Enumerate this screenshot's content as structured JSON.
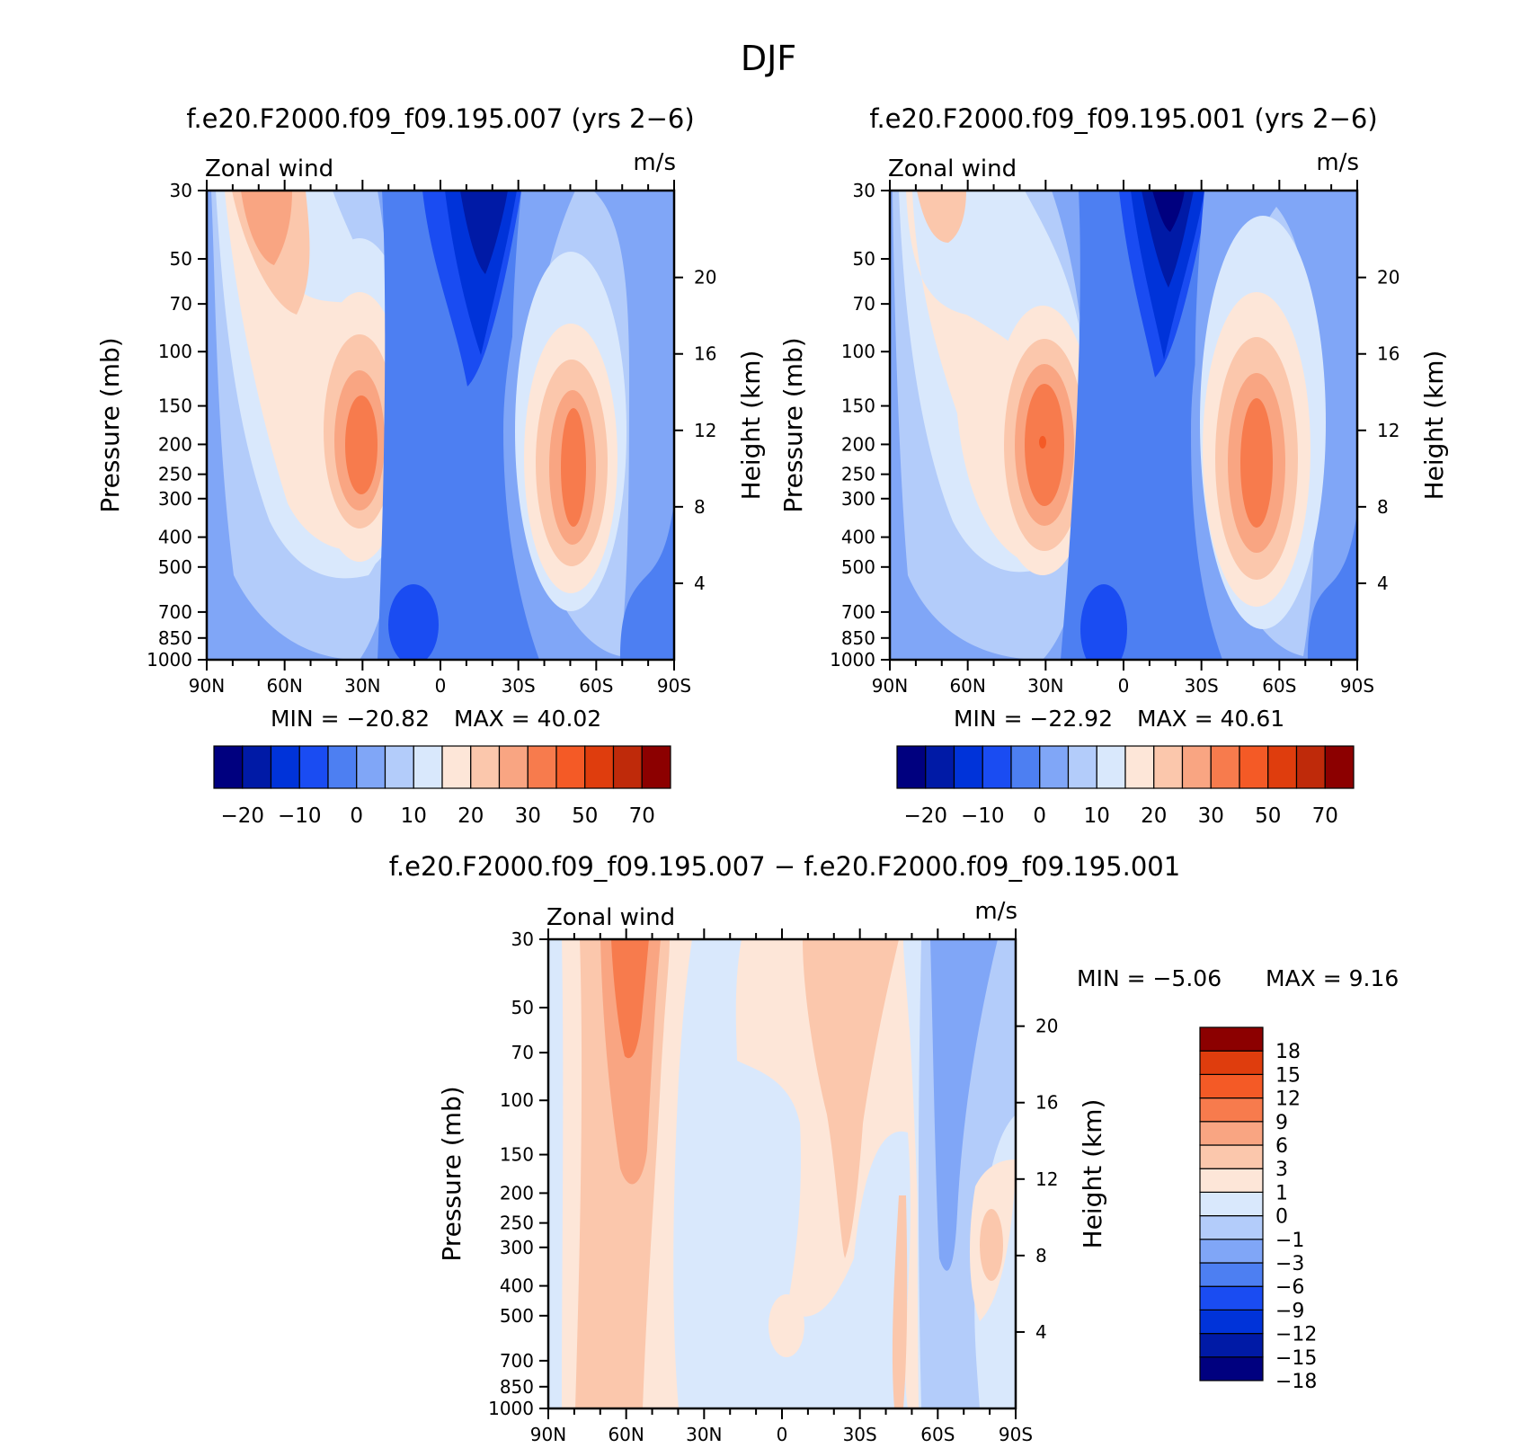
{
  "figure_title": "DJF",
  "colors": {
    "full_scale": [
      "#00007f",
      "#001aa6",
      "#0033d9",
      "#1a4cf2",
      "#4d7ff2",
      "#80a6f7",
      "#b3ccfa",
      "#d9e8fc",
      "#fde6d8",
      "#fbc7ac",
      "#f9a582",
      "#f77b4d",
      "#f45a26",
      "#df3d0d",
      "#bf2a0a",
      "#8c0000"
    ],
    "diff_scale": [
      "#00007f",
      "#001aa6",
      "#0033d9",
      "#1a4cf2",
      "#4d7ff2",
      "#80a6f7",
      "#b3ccfa",
      "#d9e8fc",
      "#fde6d8",
      "#fbc7ac",
      "#f9a582",
      "#f77b4d",
      "#f45a26",
      "#df3d0d",
      "#8c0000"
    ]
  },
  "common": {
    "xticklabels": [
      "90N",
      "60N",
      "30N",
      "0",
      "30S",
      "60S",
      "90S"
    ],
    "pressure_ticks": [
      30,
      50,
      70,
      100,
      150,
      200,
      250,
      300,
      400,
      500,
      700,
      850,
      1000
    ],
    "height_ticks": [
      20,
      16,
      12,
      8,
      4
    ],
    "ylabel_left": "Pressure (mb)",
    "ylabel_right": "Height (km)",
    "variable": "Zonal wind",
    "units": "m/s"
  },
  "panels": [
    {
      "title": "f.e20.F2000.f09_f09.195.007 (yrs 2−6)",
      "min_text": "MIN = −20.82",
      "max_text": "MAX =  40.02"
    },
    {
      "title": "f.e20.F2000.f09_f09.195.001 (yrs 2−6)",
      "min_text": "MIN = −22.92",
      "max_text": "MAX =  40.61"
    },
    {
      "title": "f.e20.F2000.f09_f09.195.007 − f.e20.F2000.f09_f09.195.001",
      "min_text": "MIN =  −5.06",
      "max_text": "MAX =   9.16"
    }
  ],
  "colorbar_full": {
    "labels": [
      "−20",
      "−10",
      "0",
      "10",
      "20",
      "30",
      "50",
      "70"
    ]
  },
  "colorbar_diff": {
    "labels": [
      "18",
      "15",
      "12",
      "9",
      "6",
      "3",
      "1",
      "0",
      "−1",
      "−3",
      "−6",
      "−9",
      "−12",
      "−15",
      "−18"
    ]
  },
  "chart_data": [
    {
      "type": "heatmap",
      "title": "f.e20.F2000.f09_f09.195.007 (yrs 2−6)",
      "subtitle": "Zonal wind",
      "units": "m/s",
      "xlabel": "",
      "ylabel": "Pressure (mb)",
      "ylabel_right": "Height (km)",
      "x": [
        -90,
        -60,
        -30,
        0,
        30,
        60,
        90
      ],
      "xlim": [
        -90,
        90
      ],
      "ylim": [
        1000,
        30
      ],
      "y_scale": "log",
      "min": -20.82,
      "max": 40.02,
      "features": [
        {
          "kind": "westerly jet",
          "lat": 32,
          "pressure": 200,
          "peak_ms": 32
        },
        {
          "kind": "westerly jet",
          "lat": -50,
          "pressure": 200,
          "peak_ms": 40
        },
        {
          "kind": "westerly",
          "lat": 64,
          "pressure": 40,
          "peak_ms": 30
        },
        {
          "kind": "easterly",
          "lat": -18,
          "pressure": 35,
          "peak_ms": -20
        }
      ]
    },
    {
      "type": "heatmap",
      "title": "f.e20.F2000.f09_f09.195.001 (yrs 2−6)",
      "subtitle": "Zonal wind",
      "units": "m/s",
      "xlabel": "",
      "ylabel": "Pressure (mb)",
      "ylabel_right": "Height (km)",
      "x": [
        -90,
        -60,
        -30,
        0,
        30,
        60,
        90
      ],
      "xlim": [
        -90,
        90
      ],
      "ylim": [
        1000,
        30
      ],
      "y_scale": "log",
      "min": -22.92,
      "max": 40.61,
      "features": [
        {
          "kind": "westerly jet",
          "lat": 30,
          "pressure": 200,
          "peak_ms": 40
        },
        {
          "kind": "westerly jet",
          "lat": -50,
          "pressure": 200,
          "peak_ms": 40
        },
        {
          "kind": "westerly",
          "lat": 65,
          "pressure": 40,
          "peak_ms": 20
        },
        {
          "kind": "easterly",
          "lat": -18,
          "pressure": 35,
          "peak_ms": -22
        }
      ]
    },
    {
      "type": "heatmap",
      "title": "f.e20.F2000.f09_f09.195.007 − f.e20.F2000.f09_f09.195.001",
      "subtitle": "Zonal wind",
      "units": "m/s",
      "xlabel": "",
      "ylabel": "Pressure (mb)",
      "ylabel_right": "Height (km)",
      "x": [
        -90,
        -60,
        -30,
        0,
        30,
        60,
        90
      ],
      "xlim": [
        -90,
        90
      ],
      "ylim": [
        1000,
        30
      ],
      "y_scale": "log",
      "min": -5.06,
      "max": 9.16,
      "features": [
        {
          "kind": "positive",
          "lat": 60,
          "pressure": 35,
          "peak_ms": 9
        },
        {
          "kind": "positive",
          "lat": -20,
          "pressure": 60,
          "peak_ms": 3
        },
        {
          "kind": "negative",
          "lat": -65,
          "pressure": 150,
          "peak_ms": -5
        }
      ]
    }
  ]
}
